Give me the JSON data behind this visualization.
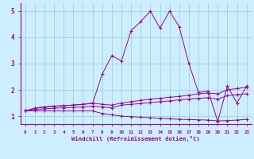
{
  "xlabel": "Windchill (Refroidissement éolien,°C)",
  "ylabel": "",
  "xlim": [
    -0.5,
    23.5
  ],
  "ylim": [
    0.7,
    5.3
  ],
  "yticks": [
    1,
    2,
    3,
    4,
    5
  ],
  "xticks": [
    0,
    1,
    2,
    3,
    4,
    5,
    6,
    7,
    8,
    9,
    10,
    11,
    12,
    13,
    14,
    15,
    16,
    17,
    18,
    19,
    20,
    21,
    22,
    23
  ],
  "background_color": "#cceeff",
  "line_color": "#990099",
  "grid_color": "#99cccc",
  "line1_x": [
    0,
    1,
    2,
    3,
    4,
    5,
    6,
    7,
    8,
    9,
    10,
    11,
    12,
    13,
    14,
    15,
    16,
    17,
    18,
    19,
    20,
    21,
    22,
    23
  ],
  "line1_y": [
    1.2,
    1.3,
    1.35,
    1.38,
    1.4,
    1.42,
    1.45,
    1.48,
    2.6,
    3.3,
    3.1,
    4.25,
    4.6,
    5.0,
    4.35,
    5.0,
    4.4,
    3.0,
    1.9,
    1.95,
    0.8,
    2.15,
    1.5,
    2.15
  ],
  "line2_x": [
    0,
    1,
    2,
    3,
    4,
    5,
    6,
    7,
    8,
    9,
    10,
    11,
    12,
    13,
    14,
    15,
    16,
    17,
    18,
    19,
    20,
    21,
    22,
    23
  ],
  "line2_y": [
    1.2,
    1.3,
    1.35,
    1.38,
    1.4,
    1.42,
    1.45,
    1.5,
    1.45,
    1.42,
    1.5,
    1.55,
    1.6,
    1.65,
    1.68,
    1.72,
    1.75,
    1.8,
    1.85,
    1.88,
    1.85,
    2.0,
    2.05,
    2.1
  ],
  "line3_x": [
    0,
    1,
    2,
    3,
    4,
    5,
    6,
    7,
    8,
    9,
    10,
    11,
    12,
    13,
    14,
    15,
    16,
    17,
    18,
    19,
    20,
    21,
    22,
    23
  ],
  "line3_y": [
    1.2,
    1.25,
    1.28,
    1.3,
    1.32,
    1.33,
    1.35,
    1.38,
    1.35,
    1.32,
    1.42,
    1.45,
    1.48,
    1.52,
    1.55,
    1.58,
    1.62,
    1.65,
    1.68,
    1.7,
    1.65,
    1.78,
    1.82,
    1.85
  ],
  "line4_x": [
    0,
    1,
    2,
    3,
    4,
    5,
    6,
    7,
    8,
    9,
    10,
    11,
    12,
    13,
    14,
    15,
    16,
    17,
    18,
    19,
    20,
    21,
    22,
    23
  ],
  "line4_y": [
    1.2,
    1.2,
    1.2,
    1.2,
    1.2,
    1.2,
    1.2,
    1.2,
    1.1,
    1.05,
    1.0,
    0.98,
    0.96,
    0.94,
    0.92,
    0.9,
    0.88,
    0.87,
    0.86,
    0.85,
    0.82,
    0.83,
    0.85,
    0.88
  ]
}
